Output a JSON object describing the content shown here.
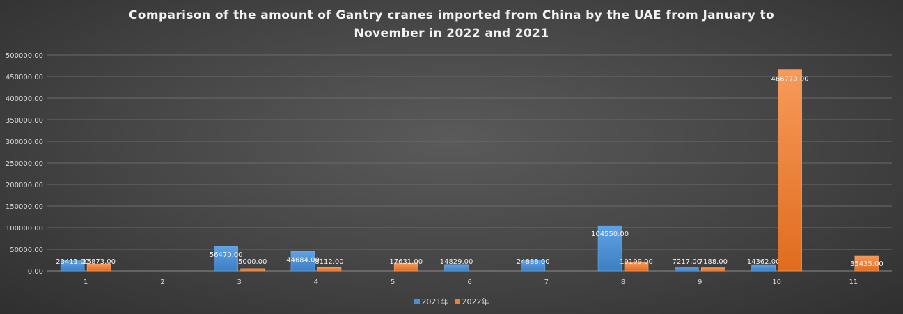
{
  "chart_data": {
    "type": "bar",
    "title_lines": [
      "Comparison of the amount of Gantry cranes imported from China by the UAE from January to",
      "November in 2022 and 2021"
    ],
    "categories": [
      "1",
      "2",
      "3",
      "4",
      "5",
      "6",
      "7",
      "8",
      "9",
      "10",
      "11"
    ],
    "series": [
      {
        "name": "2021年",
        "color": "#4a8fd4",
        "values": [
          23411.0,
          null,
          56470.0,
          44684.0,
          null,
          14829.0,
          24888.0,
          104550.0,
          7217.0,
          14362.0,
          null
        ],
        "labels": [
          "23411.00",
          "",
          "56470.00",
          "44684.00",
          "",
          "14829.00",
          "24888.00",
          "104550.00",
          "7217.00",
          "14362.00",
          ""
        ]
      },
      {
        "name": "2022年",
        "color": "#ed7d31",
        "values": [
          15873.0,
          null,
          5000.0,
          8112.0,
          17631.0,
          null,
          null,
          19199.0,
          7188.0,
          466770.0,
          35435.0
        ],
        "labels": [
          "15873.00",
          "",
          "5000.00",
          "8112.00",
          "17631.00",
          "",
          "",
          "19199.00",
          "7188.00",
          "466770.00",
          "35435.00"
        ]
      }
    ],
    "ylim": [
      0,
      500000
    ],
    "y_ticks": [
      "0.00",
      "50000.00",
      "100000.00",
      "150000.00",
      "200000.00",
      "250000.00",
      "300000.00",
      "350000.00",
      "400000.00",
      "450000.00",
      "500000.00"
    ],
    "grid": true,
    "legend_position": "bottom-center"
  }
}
